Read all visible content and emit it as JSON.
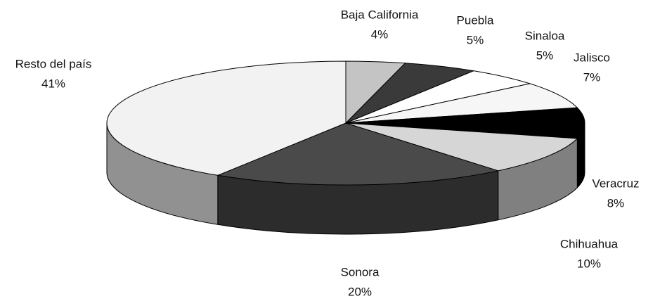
{
  "chart_data": {
    "type": "pie3d",
    "categories": [
      "Baja California",
      "Puebla",
      "Sinaloa",
      "Jalisco",
      "Veracruz",
      "Chihuahua",
      "Sonora",
      "Resto del país"
    ],
    "values": [
      4,
      5,
      5,
      7,
      8,
      10,
      20,
      41
    ],
    "value_labels": [
      "4%",
      "5%",
      "5%",
      "7%",
      "8%",
      "10%",
      "20%",
      "41%"
    ],
    "colors": [
      "#c4c4c4",
      "#3a3a3a",
      "#ffffff",
      "#f6f6f6",
      "#000000",
      "#d6d6d6",
      "#4a4a4a",
      "#f2f2f2"
    ]
  }
}
